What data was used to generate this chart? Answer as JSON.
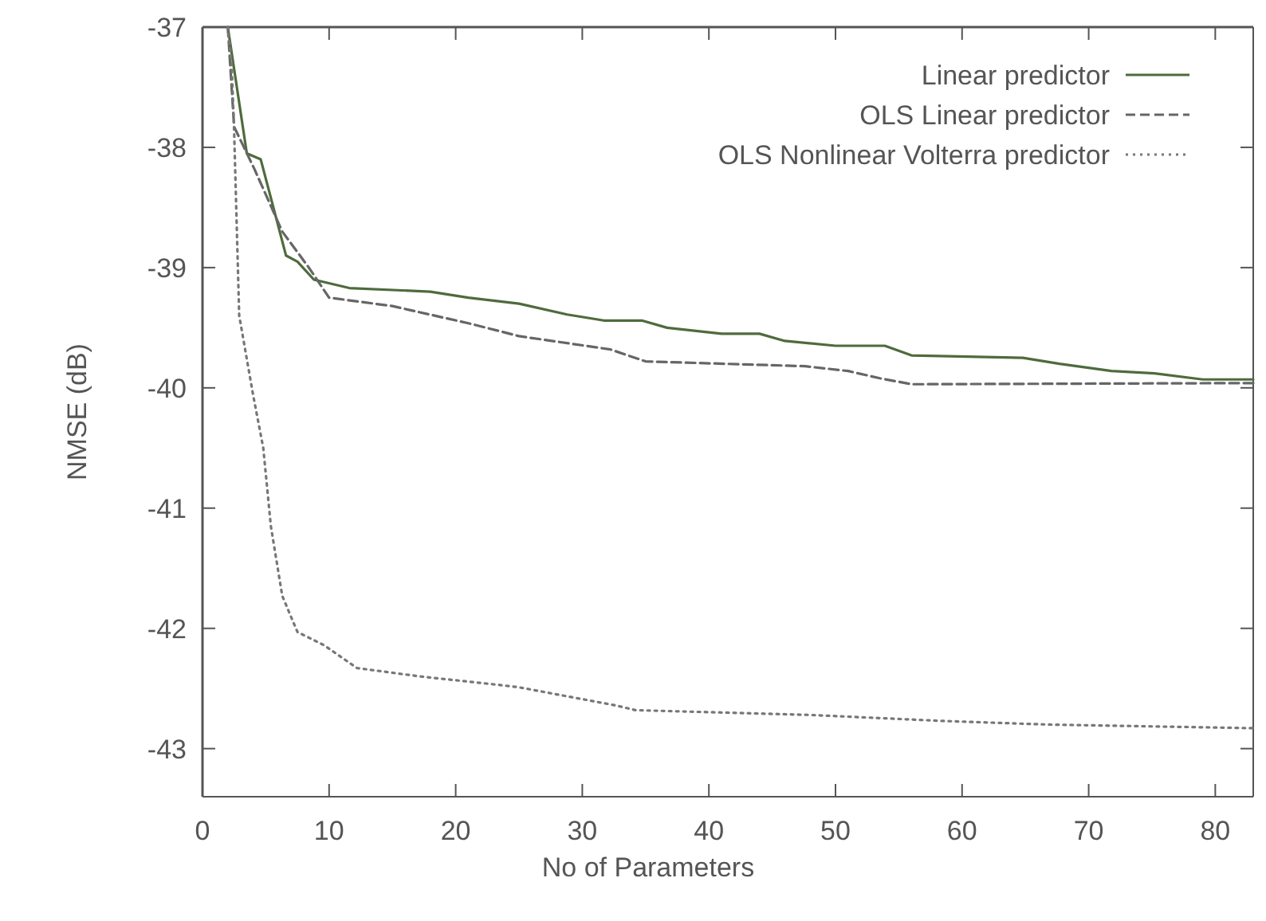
{
  "chart_data": {
    "type": "line",
    "xlabel": "No of Parameters",
    "ylabel": "NMSE (dB)",
    "xlim": [
      0,
      83
    ],
    "ylim": [
      -43.4,
      -37
    ],
    "xticks": [
      0,
      10,
      20,
      30,
      40,
      50,
      60,
      70,
      80
    ],
    "yticks": [
      -43,
      -42,
      -41,
      -40,
      -39,
      -38,
      -37
    ],
    "grid": false,
    "legend": "top right",
    "marker": "none",
    "series": [
      {
        "name": "Linear predictor",
        "color": "#4f6b3c",
        "line_style": "solid",
        "x": [
          2,
          3.5,
          4.6,
          6.6,
          7.5,
          8.8,
          11.6,
          18,
          21,
          25,
          28.8,
          31.7,
          34.7,
          36.7,
          41,
          44,
          46,
          50,
          53.9,
          56,
          64.8,
          67.7,
          71.8,
          75.2,
          79,
          83
        ],
        "values": [
          -37,
          -38.05,
          -38.1,
          -38.9,
          -38.95,
          -39.1,
          -39.17,
          -39.2,
          -39.25,
          -39.3,
          -39.39,
          -39.44,
          -39.44,
          -39.5,
          -39.55,
          -39.55,
          -39.61,
          -39.65,
          -39.65,
          -39.73,
          -39.75,
          -39.8,
          -39.86,
          -39.88,
          -39.93,
          -39.93
        ]
      },
      {
        "name": "OLS Linear predictor",
        "color": "#666666",
        "line_style": "dashed",
        "x": [
          2,
          2.5,
          4.1,
          6.3,
          8.4,
          10,
          15,
          21.3,
          25,
          32.2,
          35,
          47.6,
          51,
          53.5,
          56,
          83
        ],
        "values": [
          -37,
          -37.83,
          -38.18,
          -38.7,
          -39,
          -39.25,
          -39.32,
          -39.47,
          -39.57,
          -39.68,
          -39.78,
          -39.82,
          -39.86,
          -39.92,
          -39.97,
          -39.96
        ]
      },
      {
        "name": "OLS Nonlinear Volterra predictor",
        "color": "#777777",
        "line_style": "dotted",
        "x": [
          2,
          2.3,
          2.5,
          2.9,
          4,
          4.8,
          5.4,
          6.3,
          7.5,
          9.6,
          12.2,
          17.2,
          23.4,
          25,
          32.6,
          34.2,
          48,
          58.5,
          66.8,
          83
        ],
        "values": [
          -37,
          -37.3,
          -37.87,
          -39.4,
          -40.06,
          -40.5,
          -41.15,
          -41.73,
          -42.03,
          -42.14,
          -42.33,
          -42.4,
          -42.47,
          -42.49,
          -42.64,
          -42.68,
          -42.72,
          -42.77,
          -42.8,
          -42.83
        ]
      }
    ]
  }
}
